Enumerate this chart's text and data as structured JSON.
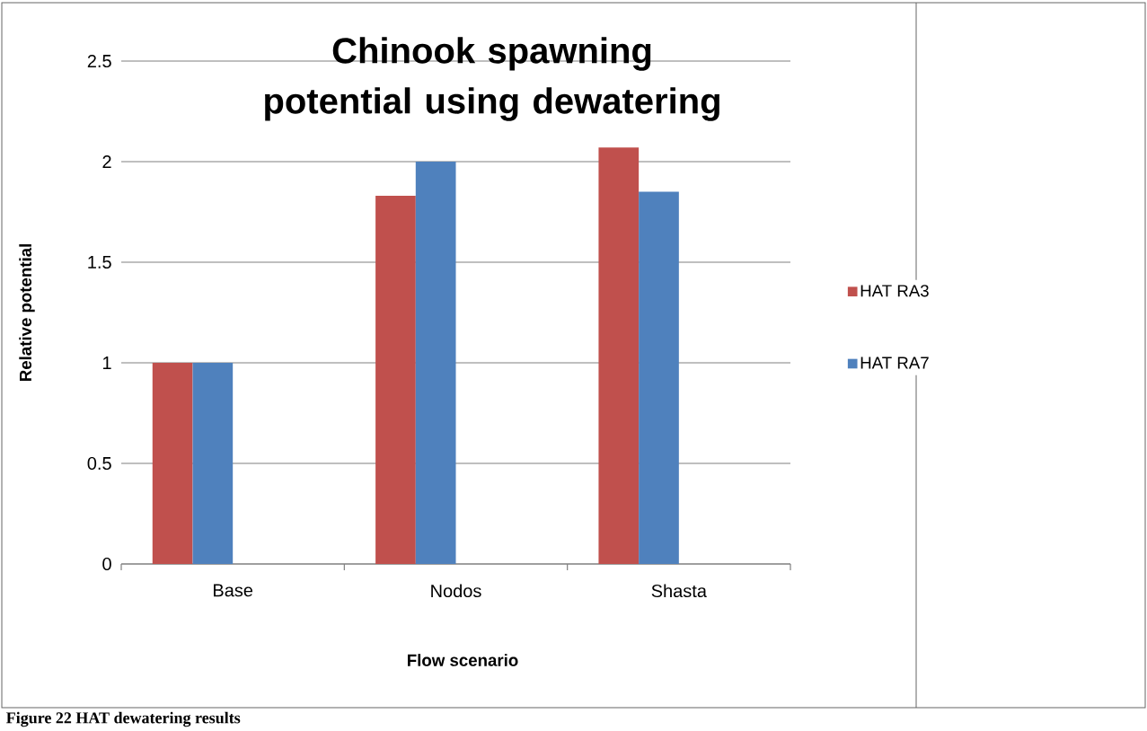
{
  "chart_data": {
    "type": "bar",
    "title": "Chinook spawning potential  using dewatering",
    "xlabel": "Flow scenario",
    "ylabel": "Relative potential",
    "categories": [
      "Base",
      "Nodos",
      "Shasta"
    ],
    "series": [
      {
        "name": "HAT RA3",
        "color": "#c0504d",
        "values": [
          1,
          1.83,
          2.07
        ]
      },
      {
        "name": "HAT RA7",
        "color": "#4f81bd",
        "values": [
          1,
          2,
          1.85
        ]
      }
    ],
    "ylim": [
      0,
      2.5
    ],
    "yticks": [
      0,
      0.5,
      1,
      1.5,
      2,
      2.5
    ],
    "grid": "y",
    "legend": "right",
    "annotations": [
      "Figure 22 HAT dewatering results"
    ]
  }
}
